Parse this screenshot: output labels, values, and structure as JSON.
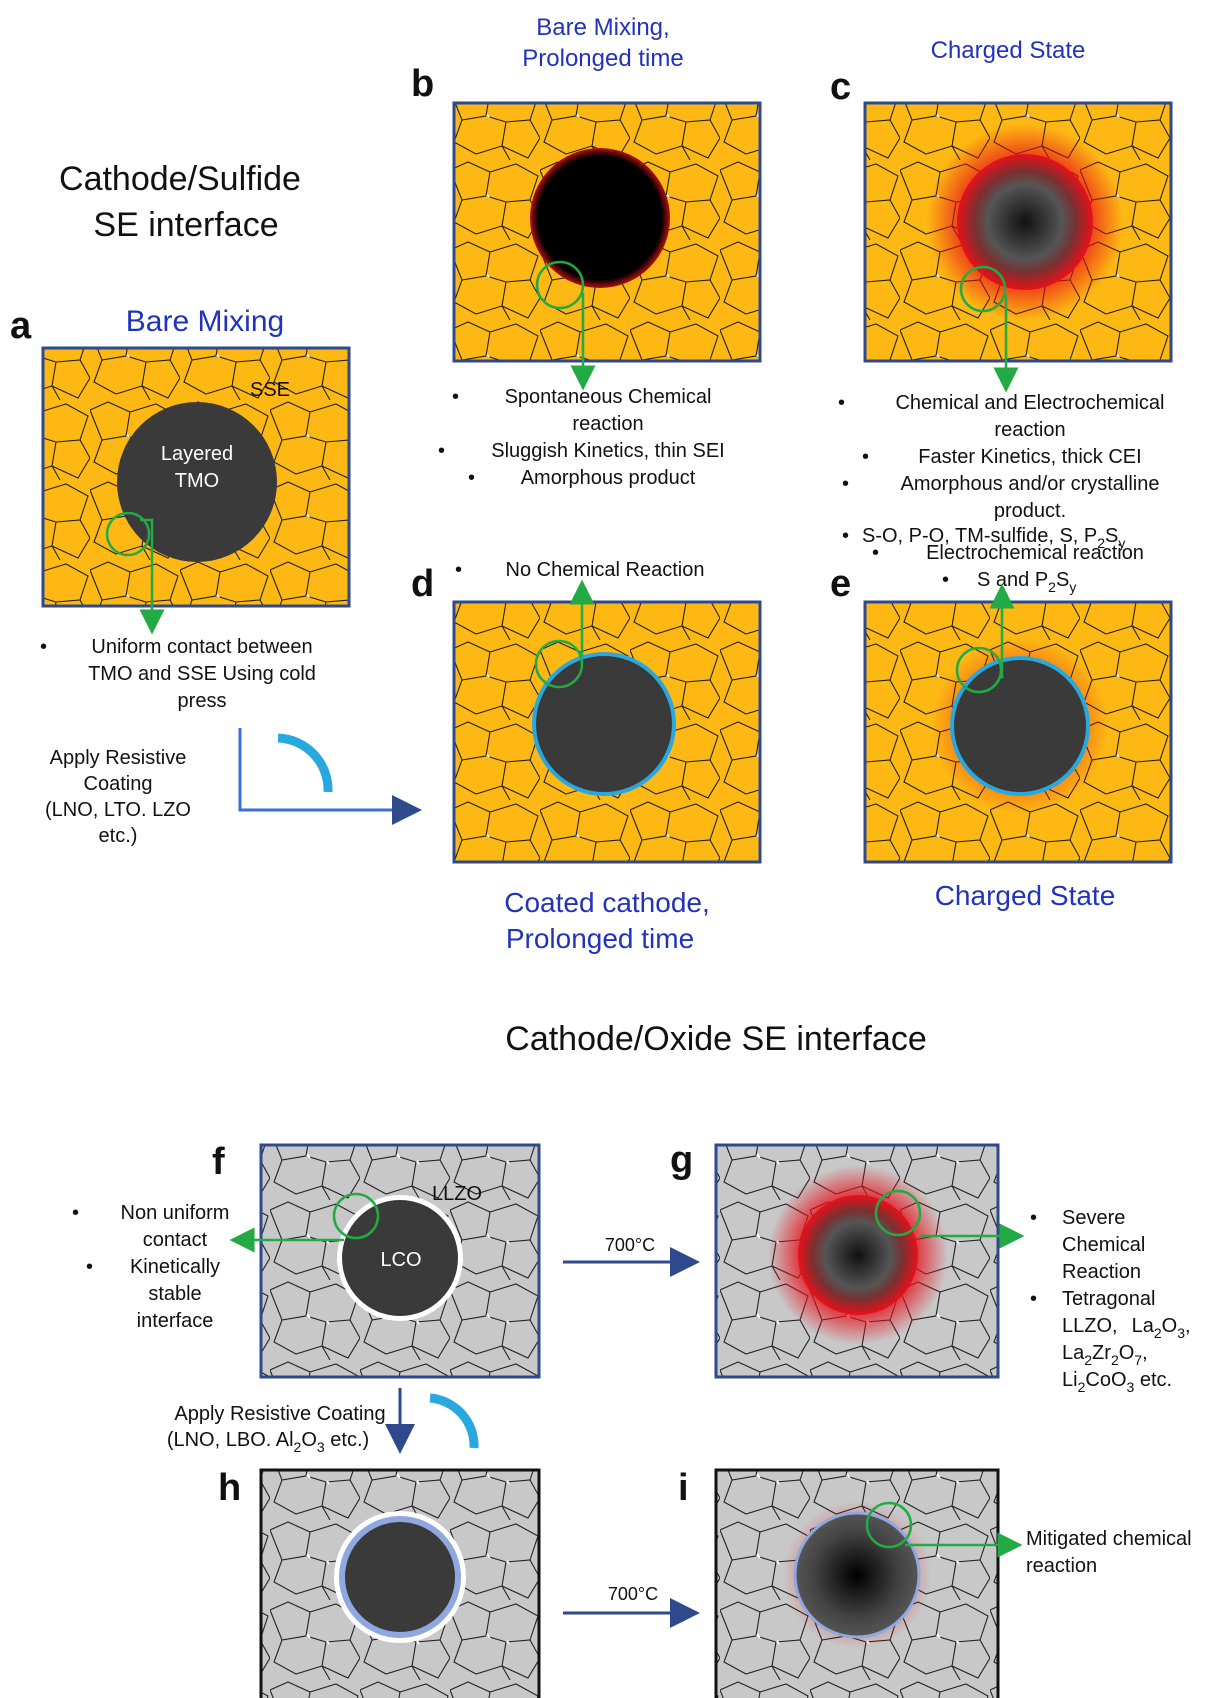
{
  "sulfide_section": {
    "title_line1": "Cathode/Sulfide",
    "title_line2": "SE interface"
  },
  "oxide_section": {
    "title": "Cathode/Oxide SE interface"
  },
  "panels": {
    "a": {
      "letter": "a",
      "header": "Bare Mixing",
      "sse_label": "SSE",
      "particle_label_line1": "Layered",
      "particle_label_line2": "TMO",
      "notes": [
        "Uniform contact between",
        "TMO and SSE Using cold",
        "press"
      ]
    },
    "b": {
      "letter": "b",
      "header_line1": "Bare Mixing,",
      "header_line2": "Prolonged time",
      "notes": [
        "Spontaneous Chemical",
        "reaction",
        "Sluggish Kinetics, thin SEI",
        "Amorphous product"
      ]
    },
    "c": {
      "letter": "c",
      "header": "Charged State",
      "notes": [
        "Chemical and Electrochemical",
        "reaction",
        "Faster Kinetics, thick CEI",
        "Amorphous and/or crystalline",
        "product.",
        "S-O, P-O, TM-sulfide, S, P",
        "2",
        "S",
        "y"
      ]
    },
    "d": {
      "letter": "d",
      "note": "No Chemical Reaction",
      "footer_line1": "Coated cathode,",
      "footer_line2": "Prolonged time"
    },
    "e": {
      "letter": "e",
      "notes": [
        "Electrochemical reaction",
        "S and P",
        "2",
        "S",
        "y"
      ],
      "footer": "Charged State"
    },
    "coating_step": {
      "lines": [
        "Apply Resistive",
        "Coating",
        "(LNO, LTO. LZO",
        "etc.)"
      ]
    },
    "f": {
      "letter": "f",
      "llzo_label": "LLZO",
      "lco_label": "LCO",
      "notes": [
        "Non uniform",
        "contact",
        "Kinetically",
        "stable",
        "interface"
      ]
    },
    "g": {
      "letter": "g",
      "temp": "700°C",
      "notes": [
        "Severe",
        "Chemical",
        "Reaction",
        "Tetragonal",
        "LLZO,",
        "La",
        "2",
        "O",
        "3",
        ",",
        "La",
        "2",
        "Zr",
        "2",
        "O",
        "7",
        ",",
        "Li",
        "2",
        "CoO",
        "3",
        " etc."
      ]
    },
    "oxide_coating_step": {
      "line1": "Apply Resistive Coating",
      "line2_a": "(LNO, LBO. Al",
      "line2_sub1": "2",
      "line2_b": "O",
      "line2_sub2": "3",
      "line2_c": " etc.)"
    },
    "h": {
      "letter": "h"
    },
    "i": {
      "letter": "i",
      "temp": "700°C",
      "notes": [
        "Mitigated  chemical",
        "reaction"
      ]
    }
  },
  "colors": {
    "sse_fill": "#fdb813",
    "oxide_fill": "#c8c8c8",
    "particle": "#3a3a3a",
    "frame": "#2e4a8c",
    "marker": "#22aa44",
    "coating": "#29a8e0",
    "reaction": "#e8101a",
    "header_blue": "#2233bb"
  }
}
